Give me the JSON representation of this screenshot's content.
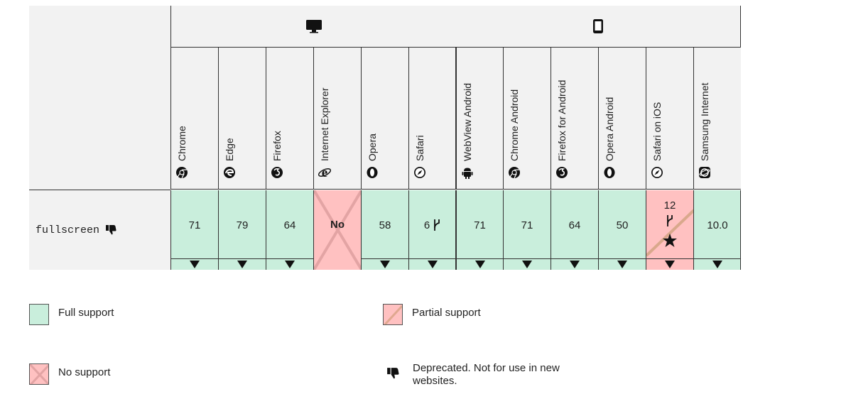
{
  "platforms": [
    {
      "icon": "desktop-icon"
    },
    {
      "icon": "mobile-icon"
    }
  ],
  "browsers": [
    {
      "name": "Chrome",
      "icon": "chrome-icon"
    },
    {
      "name": "Edge",
      "icon": "edge-icon"
    },
    {
      "name": "Firefox",
      "icon": "firefox-icon"
    },
    {
      "name": "Internet Explorer",
      "icon": "ie-icon"
    },
    {
      "name": "Opera",
      "icon": "opera-icon"
    },
    {
      "name": "Safari",
      "icon": "safari-icon"
    },
    {
      "name": "WebView Android",
      "icon": "android-icon"
    },
    {
      "name": "Chrome Android",
      "icon": "chrome-icon"
    },
    {
      "name": "Firefox for Android",
      "icon": "firefox-icon"
    },
    {
      "name": "Opera Android",
      "icon": "opera-icon"
    },
    {
      "name": "Safari on iOS",
      "icon": "safari-icon"
    },
    {
      "name": "Samsung Internet",
      "icon": "samsung-internet-icon"
    }
  ],
  "feature": {
    "name": "fullscreen",
    "deprecated_icon": "thumbs-down-icon"
  },
  "support": [
    {
      "value": "71",
      "status": "full"
    },
    {
      "value": "79",
      "status": "full"
    },
    {
      "value": "64",
      "status": "full"
    },
    {
      "value": "No",
      "status": "none"
    },
    {
      "value": "58",
      "status": "full"
    },
    {
      "value": "6",
      "status": "full",
      "note": "fork-icon"
    },
    {
      "value": "71",
      "status": "full"
    },
    {
      "value": "71",
      "status": "full"
    },
    {
      "value": "64",
      "status": "full"
    },
    {
      "value": "50",
      "status": "full"
    },
    {
      "value": "12",
      "status": "partial",
      "note": "fork-icon",
      "extra": "asterisk-icon"
    },
    {
      "value": "10.0",
      "status": "full"
    }
  ],
  "legend": {
    "full": "Full support",
    "partial": "Partial support",
    "none": "No support",
    "deprecated": "Deprecated. Not for use in new websites."
  },
  "colors": {
    "full": "#c9eedc",
    "none": "#ffc1c1",
    "header": "#f2f2f2"
  }
}
